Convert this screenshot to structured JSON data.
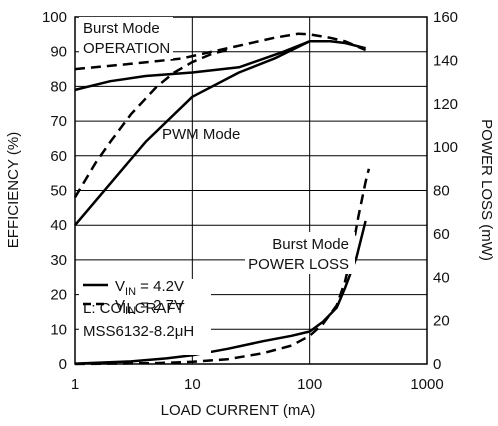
{
  "chart_data": {
    "type": "line",
    "xlabel": "LOAD CURRENT (mA)",
    "ylabel_left": "EFFICIENCY (%)",
    "ylabel_right": "POWER LOSS (mW)",
    "x_scale": "log",
    "xlim": [
      1,
      1000
    ],
    "ylim_left": [
      0,
      100
    ],
    "ylim_right": [
      0,
      160
    ],
    "x_ticks": [
      "1",
      "10",
      "100",
      "1000"
    ],
    "y_left_ticks": [
      "0",
      "10",
      "20",
      "30",
      "40",
      "50",
      "60",
      "70",
      "80",
      "90",
      "100"
    ],
    "y_right_ticks": [
      "0",
      "20",
      "40",
      "60",
      "80",
      "100",
      "120",
      "140",
      "160"
    ],
    "grid": true,
    "annotations": [
      {
        "id": "burst-op-1",
        "text": "Burst Mode"
      },
      {
        "id": "burst-op-2",
        "text": "OPERATION"
      },
      {
        "id": "pwm",
        "text": "PWM Mode"
      },
      {
        "id": "burst-loss-1",
        "text": "Burst Mode"
      },
      {
        "id": "burst-loss-2",
        "text": "POWER LOSS"
      },
      {
        "id": "coil-1",
        "text": "L: COILCRAFT"
      },
      {
        "id": "coil-2",
        "text": "MSS6132-8.2μH"
      }
    ],
    "legend": {
      "placement": "lower-left",
      "entries": [
        {
          "prefix": "V",
          "sub": "IN",
          "suffix": " = 4.2V",
          "style": "solid"
        },
        {
          "prefix": "V",
          "sub": "IN",
          "suffix": " = 2.7V",
          "style": "dashed"
        }
      ]
    },
    "series": [
      {
        "id": "eff-burst-4v2",
        "axis": "left",
        "style": "solid",
        "x": [
          1,
          2,
          4,
          10,
          25,
          60,
          100,
          150,
          200,
          300
        ],
        "y": [
          79,
          81.5,
          83,
          84,
          85.5,
          90,
          93,
          93,
          92.5,
          91
        ]
      },
      {
        "id": "eff-burst-2v7",
        "axis": "left",
        "style": "dashed",
        "x": [
          1,
          3,
          8,
          20,
          50,
          80,
          100,
          150,
          200,
          300
        ],
        "y": [
          85,
          86.5,
          88,
          91,
          94,
          95.2,
          95,
          94,
          93,
          90.5
        ]
      },
      {
        "id": "eff-pwm-4v2",
        "axis": "left",
        "style": "solid",
        "x": [
          1,
          2,
          4,
          10,
          25,
          50,
          100
        ],
        "y": [
          40,
          52,
          64,
          77,
          84,
          88,
          93
        ]
      },
      {
        "id": "eff-pwm-2v7",
        "axis": "left",
        "style": "dashed",
        "x": [
          1,
          1.5,
          2,
          3,
          5,
          7,
          10,
          15,
          20
        ],
        "y": [
          48,
          58,
          64,
          72,
          80,
          84,
          87,
          89.5,
          90.5
        ]
      },
      {
        "id": "loss-4v2",
        "axis": "right",
        "style": "solid",
        "x": [
          1,
          3,
          6,
          10,
          20,
          40,
          70,
          100,
          130,
          170,
          200,
          250,
          300
        ],
        "y": [
          0.2,
          1.2,
          2.6,
          4,
          7,
          10.5,
          13,
          15,
          19.5,
          26,
          35,
          49,
          66
        ]
      },
      {
        "id": "loss-2v7",
        "axis": "right",
        "style": "dashed",
        "x": [
          1,
          5,
          10,
          20,
          40,
          70,
          100,
          130,
          170,
          200,
          230,
          260,
          300,
          320
        ],
        "y": [
          0,
          0.4,
          1,
          2.2,
          5,
          8.5,
          13,
          18.5,
          27,
          38,
          52,
          68,
          84,
          90
        ]
      }
    ]
  }
}
